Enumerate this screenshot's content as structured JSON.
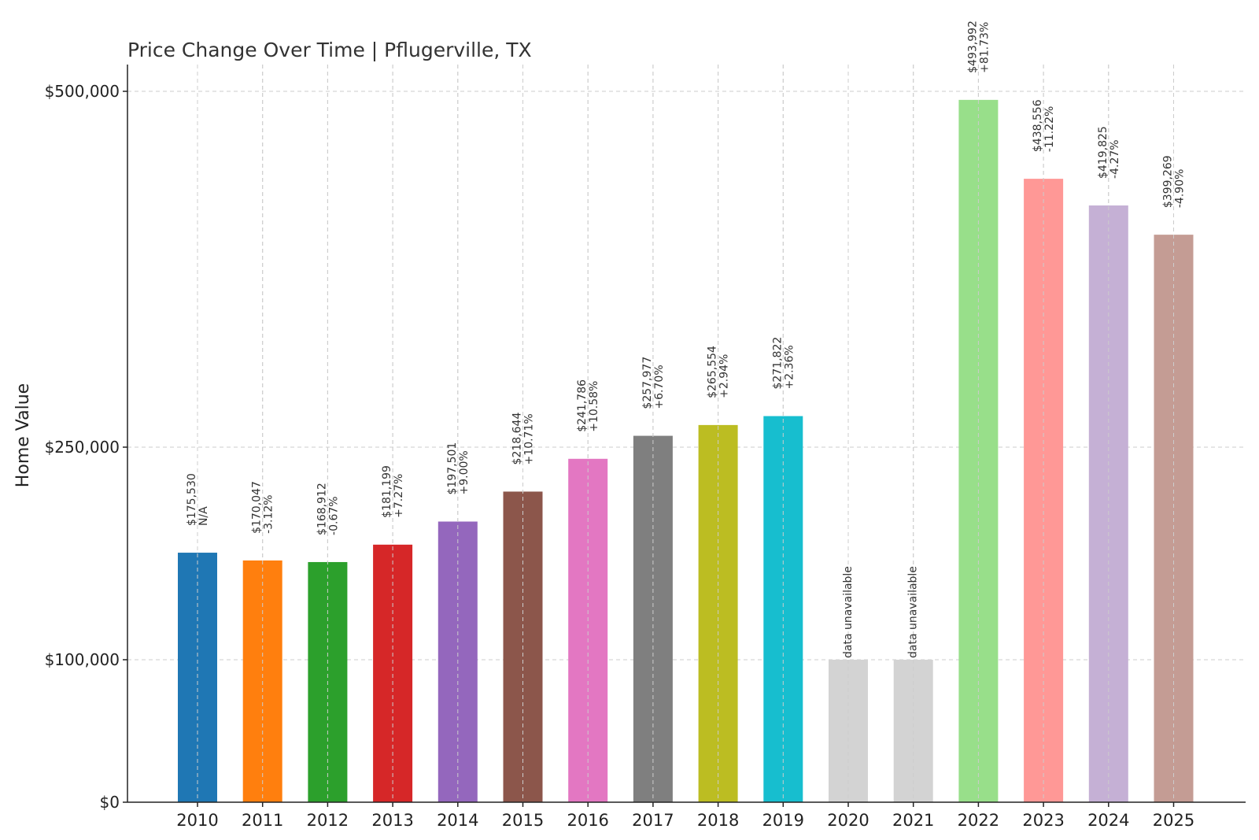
{
  "chart_data": {
    "type": "bar",
    "title": "Price Change Over Time | Pflugerville, TX",
    "xlabel": "",
    "ylabel": "Home Value",
    "ylim": [
      0,
      520000
    ],
    "grid": true,
    "categories": [
      "2010",
      "2011",
      "2012",
      "2013",
      "2014",
      "2015",
      "2016",
      "2017",
      "2018",
      "2019",
      "2020",
      "2021",
      "2022",
      "2023",
      "2024",
      "2025"
    ],
    "values": [
      175530,
      170047,
      168912,
      181199,
      197501,
      218644,
      241786,
      257977,
      265554,
      271822,
      100000,
      100000,
      493992,
      438556,
      419825,
      399269
    ],
    "value_labels": [
      "$175,530",
      "$170,047",
      "$168,912",
      "$181,199",
      "$197,501",
      "$218,644",
      "$241,786",
      "$257,977",
      "$265,554",
      "$271,822",
      "data unavailable",
      "data unavailable",
      "$493,992",
      "$438,556",
      "$419,825",
      "$399,269"
    ],
    "change_labels": [
      "N/A",
      "-3.12%",
      "-0.67%",
      "+7.27%",
      "+9.00%",
      "+10.71%",
      "+10.58%",
      "+6.70%",
      "+2.94%",
      "+2.36%",
      "",
      "",
      "+81.73%",
      "-11.22%",
      "-4.27%",
      "-4.90%"
    ],
    "colors": [
      "#1f77b4",
      "#ff7f0e",
      "#2ca02c",
      "#d62728",
      "#9467bd",
      "#8c564b",
      "#e377c2",
      "#7f7f7f",
      "#bcbd22",
      "#17becf",
      "#d3d3d3",
      "#d3d3d3",
      "#98df8a",
      "#ff9896",
      "#c5b0d5",
      "#c49c94"
    ],
    "yticks": [
      {
        "value": 0,
        "label": "$0"
      },
      {
        "value": 100000,
        "label": "$100,000"
      },
      {
        "value": 250000,
        "label": "$250,000"
      },
      {
        "value": 500000,
        "label": "$500,000"
      }
    ]
  }
}
